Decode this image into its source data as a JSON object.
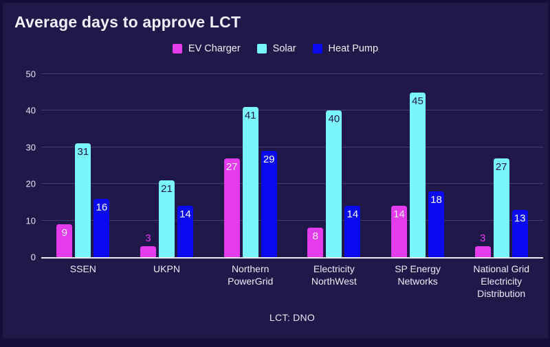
{
  "title": "Average days to approve LCT",
  "colors": {
    "outer_border": "#150e38",
    "panel_background": "#201849",
    "gridline": "#453d70",
    "axis_line": "#ece8f5",
    "text": "#f1edfa",
    "ev_charger": "#e43ced",
    "solar": "#7af5fa",
    "heat_pump": "#0a0af0"
  },
  "chart_data": {
    "type": "bar",
    "title": "Average days to approve LCT",
    "xlabel": "LCT: DNO",
    "ylabel": "",
    "ylim": [
      0,
      50
    ],
    "yticks": [
      0,
      10,
      20,
      30,
      40,
      50
    ],
    "grid": true,
    "legend_position": "top-center",
    "categories": [
      "SSEN",
      "UKPN",
      "Northern PowerGrid",
      "Electricity NorthWest",
      "SP Energy Networks",
      "National Grid Electricity Distribution"
    ],
    "series": [
      {
        "name": "EV Charger",
        "color": "#e43ced",
        "value_label_color": "#f8ecfe",
        "values": [
          9,
          3,
          27,
          8,
          14,
          3
        ]
      },
      {
        "name": "Solar",
        "color": "#7af5fa",
        "value_label_color": "#1d164a",
        "values": [
          31,
          21,
          41,
          40,
          45,
          27
        ]
      },
      {
        "name": "Heat Pump",
        "color": "#0a0af0",
        "value_label_color": "#ffffff",
        "values": [
          16,
          14,
          29,
          14,
          18,
          13
        ]
      }
    ]
  }
}
